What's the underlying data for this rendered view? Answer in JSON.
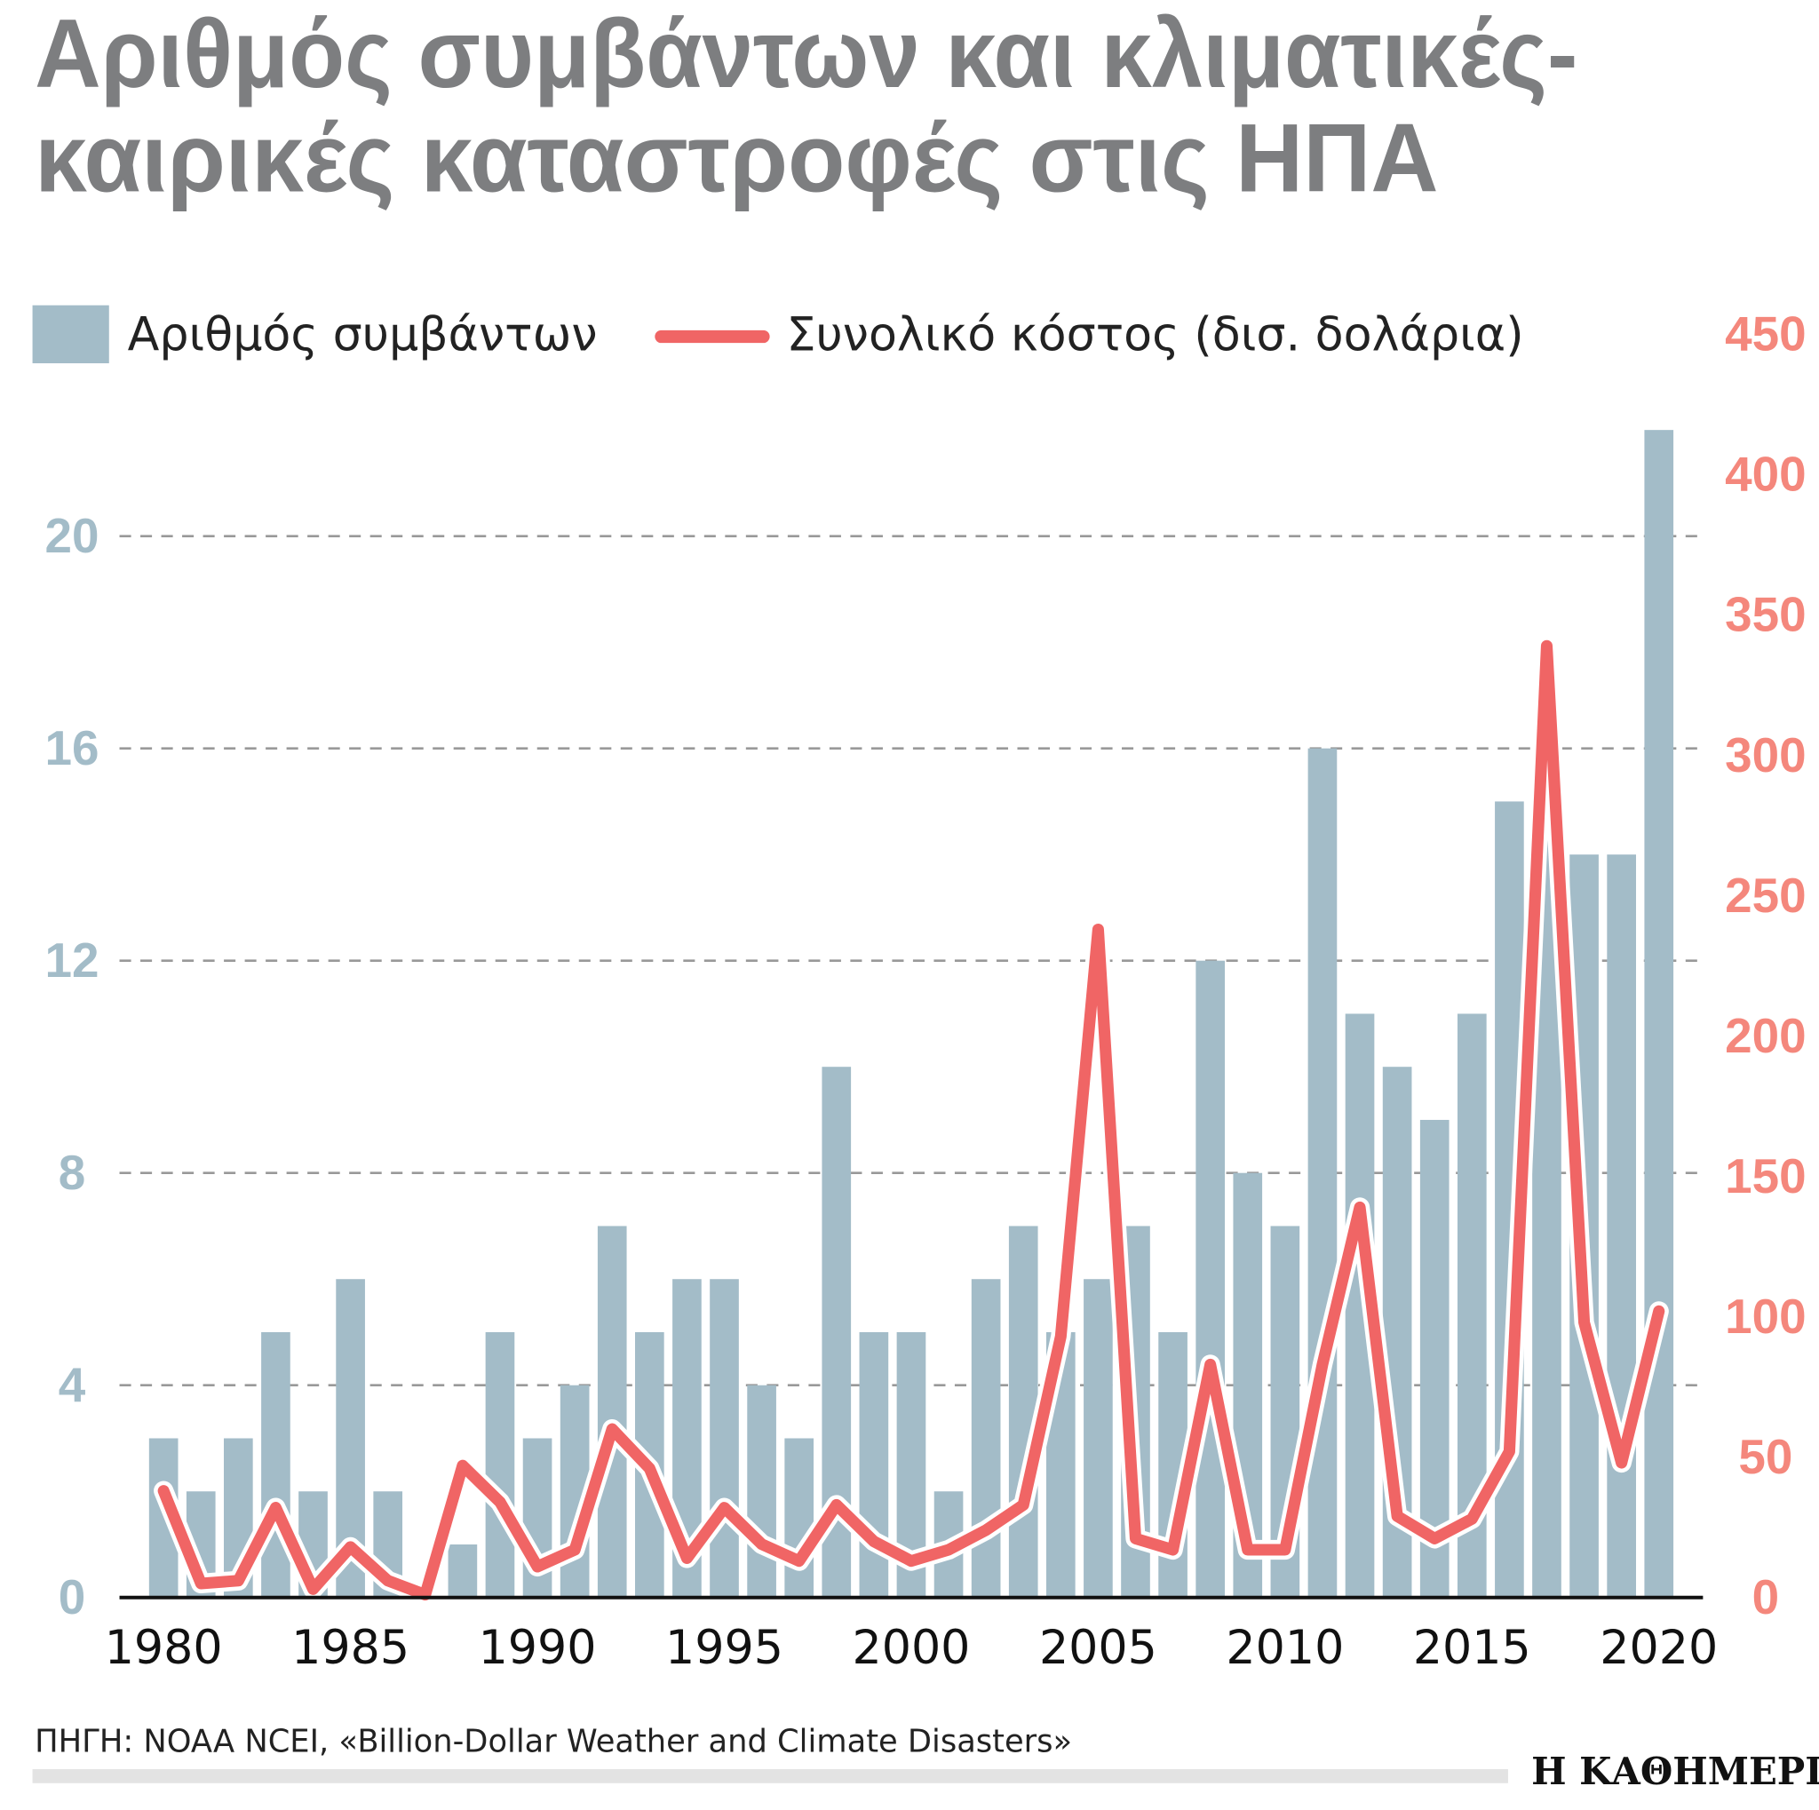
{
  "title_line1": "Αριθμός συμβάντων και κλιματικές-",
  "title_line2": "καιρικές καταστροφές στις ΗΠΑ",
  "source": "ΠΗΓΗ: NOAA NCEI, «Billion-Dollar Weather and Climate Disasters»",
  "logo": "Η ΚΑΘΗΜΕΡΙΝΗ",
  "colors": {
    "bars": "#a3bcc8",
    "line": "#f06565",
    "right_axis": "#f4877c",
    "grid": "#999999"
  },
  "chart_data": {
    "type": "bar+line",
    "legend": [
      "Αριθμός συμβάντων",
      "Συνολικό κόστος (δισ. δολάρια)"
    ],
    "legend_position": "top",
    "grid": true,
    "x": [
      1980,
      1981,
      1982,
      1983,
      1984,
      1985,
      1986,
      1987,
      1988,
      1989,
      1990,
      1991,
      1992,
      1993,
      1994,
      1995,
      1996,
      1997,
      1998,
      1999,
      2000,
      2001,
      2002,
      2003,
      2004,
      2005,
      2006,
      2007,
      2008,
      2009,
      2010,
      2011,
      2012,
      2013,
      2014,
      2015,
      2016,
      2017,
      2018,
      2019,
      2020
    ],
    "x_ticks": [
      "1980",
      "1985",
      "1990",
      "1995",
      "2000",
      "2005",
      "2010",
      "2015",
      "2020"
    ],
    "left_axis": {
      "ylim": [
        0,
        22
      ],
      "ticks": [
        "0",
        "4",
        "8",
        "12",
        "16",
        "20"
      ]
    },
    "right_axis": {
      "ylim": [
        0,
        450
      ],
      "ticks": [
        "0",
        "50",
        "100",
        "150",
        "200",
        "250",
        "300",
        "350",
        "400",
        "450"
      ]
    },
    "series": [
      {
        "name": "Αριθμός συμβάντων",
        "type": "bar",
        "axis": "left",
        "values": [
          3,
          2,
          3,
          5,
          2,
          6,
          2,
          0,
          1,
          5,
          3,
          4,
          7,
          5,
          6,
          6,
          4,
          3,
          10,
          5,
          5,
          2,
          6,
          7,
          5,
          6,
          7,
          5,
          12,
          8,
          7,
          16,
          11,
          10,
          9,
          11,
          15,
          16,
          14,
          14,
          22
        ]
      },
      {
        "name": "Συνολικό κόστος (δισ. δολάρια)",
        "type": "line",
        "axis": "right",
        "values": [
          38,
          5,
          6,
          32,
          3,
          18,
          6,
          1,
          47,
          34,
          11,
          17,
          60,
          46,
          14,
          32,
          19,
          13,
          33,
          20,
          13,
          17,
          24,
          33,
          93,
          238,
          21,
          17,
          83,
          17,
          17,
          83,
          139,
          29,
          21,
          28,
          52,
          339,
          98,
          48,
          102
        ]
      }
    ]
  }
}
